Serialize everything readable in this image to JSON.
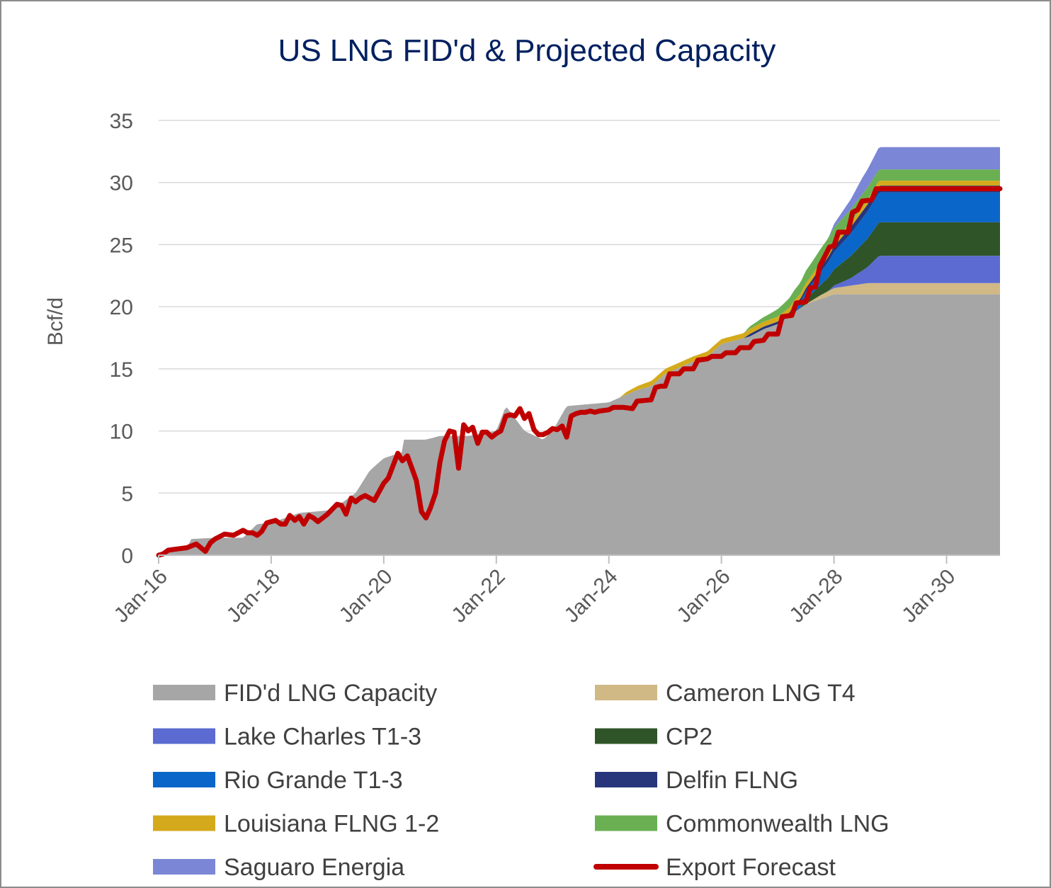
{
  "chart_data": {
    "type": "area",
    "title": "US LNG FID'd & Projected Capacity",
    "ylabel": "Bcf/d",
    "xlabel": "",
    "ylim": [
      0,
      35
    ],
    "yticks": [
      0,
      5,
      10,
      15,
      20,
      25,
      30,
      35
    ],
    "xrange": [
      2016.0,
      2030.95
    ],
    "xticks": [
      {
        "x": 2016,
        "label": "Jan-16"
      },
      {
        "x": 2018,
        "label": "Jan-18"
      },
      {
        "x": 2020,
        "label": "Jan-20"
      },
      {
        "x": 2022,
        "label": "Jan-22"
      },
      {
        "x": 2024,
        "label": "Jan-24"
      },
      {
        "x": 2026,
        "label": "Jan-26"
      },
      {
        "x": 2028,
        "label": "Jan-28"
      },
      {
        "x": 2030,
        "label": "Jan-30"
      }
    ],
    "gridlines": true,
    "legend_position": "bottom",
    "series": [
      {
        "name": "FID'd LNG Capacity",
        "kind": "area",
        "color": "#a6a6a6",
        "points": [
          [
            2016.0,
            0.0
          ],
          [
            2016.5,
            0.6
          ],
          [
            2016.58,
            1.3
          ],
          [
            2017.0,
            1.4
          ],
          [
            2017.5,
            1.4
          ],
          [
            2017.75,
            2.5
          ],
          [
            2018.0,
            2.6
          ],
          [
            2018.5,
            3.4
          ],
          [
            2019.0,
            3.6
          ],
          [
            2019.25,
            4.2
          ],
          [
            2019.5,
            5.0
          ],
          [
            2019.75,
            6.8
          ],
          [
            2020.0,
            7.8
          ],
          [
            2020.33,
            8.3
          ],
          [
            2020.36,
            9.3
          ],
          [
            2020.75,
            9.3
          ],
          [
            2021.0,
            9.6
          ],
          [
            2021.5,
            9.6
          ],
          [
            2022.0,
            10.0
          ],
          [
            2022.17,
            12.0
          ],
          [
            2022.5,
            10.0
          ],
          [
            2022.83,
            9.3
          ],
          [
            2023.0,
            10.0
          ],
          [
            2023.25,
            12.0
          ],
          [
            2024.0,
            12.3
          ],
          [
            2024.5,
            13.3
          ],
          [
            2024.75,
            13.6
          ],
          [
            2025.0,
            14.6
          ],
          [
            2025.5,
            15.6
          ],
          [
            2025.75,
            16.0
          ],
          [
            2026.0,
            17.0
          ],
          [
            2026.25,
            17.3
          ],
          [
            2026.5,
            17.6
          ],
          [
            2026.75,
            18.2
          ],
          [
            2027.0,
            18.6
          ],
          [
            2027.25,
            19.4
          ],
          [
            2027.5,
            20.2
          ],
          [
            2027.75,
            20.6
          ],
          [
            2028.0,
            21.0
          ],
          [
            2030.95,
            21.0
          ]
        ]
      },
      {
        "name": "Cameron LNG T4",
        "kind": "area",
        "color": "#d0b985",
        "points": [
          [
            2016.0,
            0
          ],
          [
            2027.5,
            0
          ],
          [
            2027.75,
            0.3
          ],
          [
            2028.0,
            0.5
          ],
          [
            2028.3,
            0.7
          ],
          [
            2028.6,
            0.9
          ],
          [
            2030.95,
            0.9
          ]
        ]
      },
      {
        "name": "Lake Charles T1-3",
        "kind": "area",
        "color": "#5b6bd1",
        "points": [
          [
            2016.0,
            0
          ],
          [
            2027.9,
            0
          ],
          [
            2028.0,
            0.2
          ],
          [
            2028.3,
            0.6
          ],
          [
            2028.6,
            1.3
          ],
          [
            2028.8,
            2.2
          ],
          [
            2030.95,
            2.2
          ]
        ]
      },
      {
        "name": "CP2",
        "kind": "area",
        "color": "#2f5428",
        "points": [
          [
            2016.0,
            0
          ],
          [
            2027.4,
            0
          ],
          [
            2027.5,
            0.4
          ],
          [
            2027.75,
            0.8
          ],
          [
            2028.0,
            1.3
          ],
          [
            2028.3,
            1.8
          ],
          [
            2028.6,
            2.3
          ],
          [
            2028.8,
            2.7
          ],
          [
            2030.95,
            2.7
          ]
        ]
      },
      {
        "name": "Rio Grande T1-3",
        "kind": "area",
        "color": "#0a66c8",
        "points": [
          [
            2016.0,
            0
          ],
          [
            2027.2,
            0
          ],
          [
            2027.3,
            0.3
          ],
          [
            2027.5,
            0.6
          ],
          [
            2027.75,
            1.0
          ],
          [
            2028.0,
            1.4
          ],
          [
            2028.3,
            1.8
          ],
          [
            2028.6,
            2.2
          ],
          [
            2028.8,
            2.4
          ],
          [
            2030.95,
            2.4
          ]
        ]
      },
      {
        "name": "Delfin FLNG",
        "kind": "area",
        "color": "#27357a",
        "points": [
          [
            2016.0,
            0
          ],
          [
            2026.4,
            0
          ],
          [
            2026.5,
            0.2
          ],
          [
            2027.0,
            0.2
          ],
          [
            2027.2,
            0.25
          ],
          [
            2027.6,
            0.3
          ],
          [
            2027.8,
            0.4
          ],
          [
            2028.2,
            0.5
          ],
          [
            2028.5,
            0.55
          ],
          [
            2030.95,
            0.55
          ]
        ]
      },
      {
        "name": "Louisiana FLNG 1-2",
        "kind": "area",
        "color": "#d4aa1c",
        "points": [
          [
            2016.0,
            0
          ],
          [
            2024.2,
            0
          ],
          [
            2024.3,
            0.2
          ],
          [
            2024.7,
            0.4
          ],
          [
            2025.0,
            0.4
          ],
          [
            2026.0,
            0.4
          ],
          [
            2027.0,
            0.4
          ],
          [
            2027.5,
            0.4
          ],
          [
            2028.0,
            0.4
          ],
          [
            2028.5,
            0.4
          ],
          [
            2030.95,
            0.4
          ]
        ]
      },
      {
        "name": "Commonwealth LNG",
        "kind": "area",
        "color": "#6ab052",
        "points": [
          [
            2016.0,
            0
          ],
          [
            2026.4,
            0
          ],
          [
            2026.5,
            0.2
          ],
          [
            2026.8,
            0.4
          ],
          [
            2027.0,
            0.6
          ],
          [
            2027.25,
            0.8
          ],
          [
            2027.5,
            1.0
          ],
          [
            2027.75,
            1.1
          ],
          [
            2028.0,
            1.1
          ],
          [
            2028.5,
            1.0
          ],
          [
            2028.8,
            0.9
          ],
          [
            2030.95,
            0.9
          ]
        ]
      },
      {
        "name": "Saguaro Energia",
        "kind": "area",
        "color": "#7b86d6",
        "points": [
          [
            2016.0,
            0
          ],
          [
            2027.9,
            0
          ],
          [
            2028.0,
            0.3
          ],
          [
            2028.3,
            0.8
          ],
          [
            2028.5,
            1.3
          ],
          [
            2028.8,
            1.8
          ],
          [
            2030.95,
            1.8
          ]
        ]
      },
      {
        "name": "Export Forecast",
        "kind": "line",
        "color": "#c00000",
        "points": [
          [
            2016.0,
            0.0
          ],
          [
            2016.08,
            0.1
          ],
          [
            2016.17,
            0.4
          ],
          [
            2016.33,
            0.5
          ],
          [
            2016.5,
            0.6
          ],
          [
            2016.67,
            0.9
          ],
          [
            2016.83,
            0.3
          ],
          [
            2016.92,
            1.0
          ],
          [
            2017.0,
            1.3
          ],
          [
            2017.17,
            1.7
          ],
          [
            2017.33,
            1.6
          ],
          [
            2017.5,
            2.0
          ],
          [
            2017.58,
            1.8
          ],
          [
            2017.67,
            1.8
          ],
          [
            2017.75,
            1.6
          ],
          [
            2017.83,
            1.9
          ],
          [
            2017.92,
            2.6
          ],
          [
            2018.0,
            2.7
          ],
          [
            2018.08,
            2.8
          ],
          [
            2018.17,
            2.5
          ],
          [
            2018.25,
            2.5
          ],
          [
            2018.33,
            3.2
          ],
          [
            2018.42,
            2.8
          ],
          [
            2018.5,
            3.1
          ],
          [
            2018.58,
            2.5
          ],
          [
            2018.67,
            3.2
          ],
          [
            2018.75,
            3.0
          ],
          [
            2018.83,
            2.7
          ],
          [
            2019.0,
            3.3
          ],
          [
            2019.17,
            4.1
          ],
          [
            2019.25,
            4.0
          ],
          [
            2019.33,
            3.3
          ],
          [
            2019.42,
            4.6
          ],
          [
            2019.5,
            4.3
          ],
          [
            2019.58,
            4.6
          ],
          [
            2019.67,
            4.8
          ],
          [
            2019.75,
            4.6
          ],
          [
            2019.83,
            4.4
          ],
          [
            2020.0,
            5.8
          ],
          [
            2020.08,
            6.2
          ],
          [
            2020.25,
            8.2
          ],
          [
            2020.33,
            7.6
          ],
          [
            2020.42,
            8.0
          ],
          [
            2020.5,
            7.0
          ],
          [
            2020.58,
            6.0
          ],
          [
            2020.67,
            3.5
          ],
          [
            2020.75,
            3.0
          ],
          [
            2020.83,
            3.8
          ],
          [
            2020.92,
            5.0
          ],
          [
            2021.0,
            7.5
          ],
          [
            2021.08,
            9.2
          ],
          [
            2021.17,
            10.0
          ],
          [
            2021.25,
            9.9
          ],
          [
            2021.33,
            7.0
          ],
          [
            2021.42,
            10.5
          ],
          [
            2021.5,
            10.0
          ],
          [
            2021.58,
            10.3
          ],
          [
            2021.67,
            9.0
          ],
          [
            2021.75,
            9.9
          ],
          [
            2021.83,
            9.9
          ],
          [
            2021.92,
            9.5
          ],
          [
            2022.0,
            9.8
          ],
          [
            2022.08,
            10.0
          ],
          [
            2022.17,
            11.2
          ],
          [
            2022.25,
            11.3
          ],
          [
            2022.33,
            11.2
          ],
          [
            2022.42,
            11.8
          ],
          [
            2022.5,
            11.0
          ],
          [
            2022.58,
            11.4
          ],
          [
            2022.67,
            10.1
          ],
          [
            2022.75,
            9.7
          ],
          [
            2022.83,
            9.7
          ],
          [
            2022.92,
            9.9
          ],
          [
            2023.0,
            10.2
          ],
          [
            2023.08,
            10.1
          ],
          [
            2023.17,
            10.4
          ],
          [
            2023.25,
            9.5
          ],
          [
            2023.33,
            11.2
          ],
          [
            2023.42,
            11.4
          ],
          [
            2023.5,
            11.5
          ],
          [
            2023.58,
            11.5
          ],
          [
            2023.67,
            11.6
          ],
          [
            2023.75,
            11.5
          ],
          [
            2023.83,
            11.6
          ],
          [
            2024.0,
            11.7
          ],
          [
            2024.08,
            11.9
          ],
          [
            2024.25,
            11.9
          ],
          [
            2024.42,
            11.8
          ],
          [
            2024.5,
            12.4
          ],
          [
            2024.75,
            12.5
          ],
          [
            2024.83,
            13.5
          ],
          [
            2024.92,
            13.6
          ],
          [
            2025.0,
            13.6
          ],
          [
            2025.08,
            14.6
          ],
          [
            2025.25,
            14.6
          ],
          [
            2025.33,
            15.0
          ],
          [
            2025.5,
            15.0
          ],
          [
            2025.58,
            15.7
          ],
          [
            2025.75,
            15.8
          ],
          [
            2025.83,
            16.0
          ],
          [
            2026.0,
            16.0
          ],
          [
            2026.08,
            16.3
          ],
          [
            2026.25,
            16.3
          ],
          [
            2026.33,
            16.7
          ],
          [
            2026.5,
            16.7
          ],
          [
            2026.58,
            17.2
          ],
          [
            2026.75,
            17.3
          ],
          [
            2026.83,
            17.8
          ],
          [
            2027.0,
            17.8
          ],
          [
            2027.08,
            19.2
          ],
          [
            2027.25,
            19.3
          ],
          [
            2027.33,
            20.3
          ],
          [
            2027.5,
            20.4
          ],
          [
            2027.58,
            21.5
          ],
          [
            2027.67,
            21.6
          ],
          [
            2027.75,
            23.3
          ],
          [
            2027.83,
            24.0
          ],
          [
            2027.92,
            24.8
          ],
          [
            2028.0,
            24.9
          ],
          [
            2028.08,
            26.0
          ],
          [
            2028.25,
            26.0
          ],
          [
            2028.33,
            27.6
          ],
          [
            2028.42,
            27.8
          ],
          [
            2028.5,
            28.5
          ],
          [
            2028.67,
            28.6
          ],
          [
            2028.75,
            29.5
          ],
          [
            2030.95,
            29.5
          ]
        ]
      }
    ]
  }
}
